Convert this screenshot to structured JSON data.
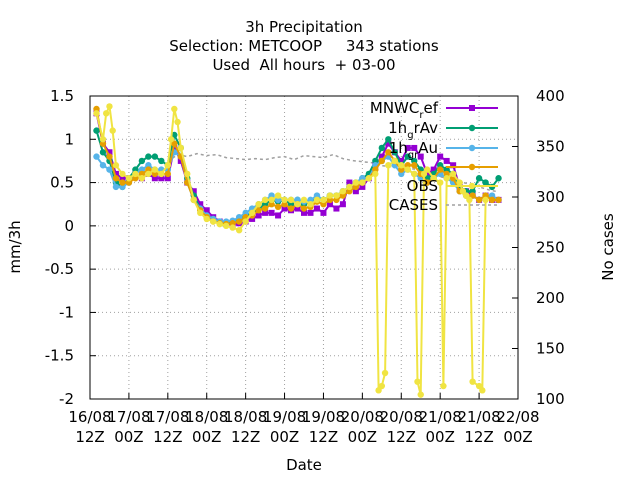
{
  "chart_data": {
    "type": "line",
    "title": [
      "3h Precipitation",
      "Selection: METCOOP     343 stations",
      "Used  All hours  + 03-00"
    ],
    "xlabel": "Date",
    "ylabel": "mm/3h",
    "y2label": "No cases",
    "ylim": [
      -2,
      1.5
    ],
    "y2lim": [
      100,
      400
    ],
    "yticks": [
      "1.5",
      "1",
      "0.5",
      "0",
      "-0.5",
      "-1",
      "-1.5",
      "-2"
    ],
    "y2ticks": [
      "400",
      "350",
      "300",
      "250",
      "200",
      "150",
      "100"
    ],
    "xrange_hours": [
      0,
      132
    ],
    "xticks": [
      {
        "h": 0,
        "line1": "16/08",
        "line2": "12Z"
      },
      {
        "h": 12,
        "line1": "17/08",
        "line2": "00Z"
      },
      {
        "h": 24,
        "line1": "17/08",
        "line2": "12Z"
      },
      {
        "h": 36,
        "line1": "18/08",
        "line2": "00Z"
      },
      {
        "h": 48,
        "line1": "18/08",
        "line2": "12Z"
      },
      {
        "h": 60,
        "line1": "19/08",
        "line2": "00Z"
      },
      {
        "h": 72,
        "line1": "19/08",
        "line2": "12Z"
      },
      {
        "h": 84,
        "line1": "20/08",
        "line2": "00Z"
      },
      {
        "h": 96,
        "line1": "20/08",
        "line2": "12Z"
      },
      {
        "h": 108,
        "line1": "21/08",
        "line2": "00Z"
      },
      {
        "h": 120,
        "line1": "21/08",
        "line2": "12Z"
      },
      {
        "h": 132,
        "line1": "22/08",
        "line2": "00Z"
      }
    ],
    "grid": true,
    "legend_position": "top-right",
    "series": [
      {
        "name": "MNWC_ref",
        "label_main": "MNWC",
        "label_sub": "r",
        "label_tail": "ef",
        "color": "#9400d3",
        "marker": "square",
        "axis": "y1",
        "x": [
          2,
          4,
          6,
          8,
          10,
          12,
          14,
          16,
          18,
          20,
          22,
          24,
          26,
          28,
          30,
          32,
          34,
          36,
          38,
          40,
          42,
          44,
          46,
          48,
          50,
          52,
          54,
          56,
          58,
          60,
          62,
          64,
          66,
          68,
          70,
          72,
          74,
          76,
          78,
          80,
          82,
          84,
          86,
          88,
          90,
          92,
          94,
          96,
          98,
          100,
          102,
          104,
          106,
          108,
          110,
          112,
          114,
          116,
          118,
          120,
          122,
          124,
          126
        ],
        "y": [
          1.3,
          0.95,
          0.85,
          0.6,
          0.55,
          0.55,
          0.6,
          0.55,
          0.6,
          0.55,
          0.55,
          0.55,
          0.9,
          0.75,
          0.5,
          0.4,
          0.25,
          0.18,
          0.1,
          0.05,
          0.02,
          0.02,
          0.03,
          0.05,
          0.08,
          0.12,
          0.15,
          0.15,
          0.12,
          0.2,
          0.18,
          0.2,
          0.15,
          0.15,
          0.2,
          0.15,
          0.25,
          0.2,
          0.25,
          0.5,
          0.4,
          0.45,
          0.55,
          0.7,
          0.8,
          0.95,
          0.85,
          0.75,
          0.9,
          0.9,
          0.8,
          0.6,
          0.65,
          0.8,
          0.75,
          0.7,
          0.45,
          0.4,
          0.35,
          0.3,
          0.35,
          0.3,
          0.3
        ]
      },
      {
        "name": "1h_grAv",
        "label_main": "1h",
        "label_sub": "g",
        "label_tail": "rAv",
        "color": "#009e73",
        "marker": "circle",
        "axis": "y1",
        "x": [
          2,
          4,
          6,
          8,
          10,
          12,
          14,
          16,
          18,
          20,
          22,
          24,
          26,
          28,
          30,
          32,
          34,
          36,
          38,
          40,
          42,
          44,
          46,
          48,
          50,
          52,
          54,
          56,
          58,
          60,
          62,
          64,
          66,
          68,
          70,
          72,
          74,
          76,
          78,
          80,
          82,
          84,
          86,
          88,
          90,
          92,
          94,
          96,
          98,
          100,
          102,
          104,
          106,
          108,
          110,
          112,
          114,
          116,
          118,
          120,
          122,
          124,
          126
        ],
        "y": [
          1.1,
          0.85,
          0.75,
          0.5,
          0.45,
          0.55,
          0.65,
          0.75,
          0.8,
          0.8,
          0.75,
          0.7,
          1.05,
          0.9,
          0.55,
          0.35,
          0.2,
          0.12,
          0.08,
          0.05,
          0.04,
          0.05,
          0.08,
          0.12,
          0.15,
          0.2,
          0.25,
          0.3,
          0.28,
          0.3,
          0.25,
          0.3,
          0.25,
          0.28,
          0.32,
          0.3,
          0.35,
          0.35,
          0.4,
          0.45,
          0.5,
          0.55,
          0.6,
          0.75,
          0.9,
          1.0,
          0.85,
          0.7,
          0.8,
          0.75,
          0.65,
          0.55,
          0.6,
          0.7,
          0.65,
          0.6,
          0.45,
          0.4,
          0.4,
          0.55,
          0.5,
          0.45,
          0.55
        ]
      },
      {
        "name": "1h_grAu",
        "label_main": "1h",
        "label_sub": "gr",
        "label_tail": "Au",
        "color": "#56b4e9",
        "marker": "circle",
        "axis": "y1",
        "x": [
          2,
          4,
          6,
          8,
          10,
          12,
          14,
          16,
          18,
          20,
          22,
          24,
          26,
          28,
          30,
          32,
          34,
          36,
          38,
          40,
          42,
          44,
          46,
          48,
          50,
          52,
          54,
          56,
          58,
          60,
          62,
          64,
          66,
          68,
          70,
          72,
          74,
          76,
          78,
          80,
          82,
          84,
          86,
          88,
          90,
          92,
          94,
          96,
          98,
          100,
          102,
          104,
          106,
          108,
          110,
          112,
          114,
          116,
          118,
          120,
          122,
          124,
          126
        ],
        "y": [
          0.8,
          0.7,
          0.65,
          0.45,
          0.45,
          0.5,
          0.6,
          0.65,
          0.7,
          0.65,
          0.65,
          0.65,
          0.85,
          0.8,
          0.5,
          0.3,
          0.2,
          0.12,
          0.08,
          0.05,
          0.05,
          0.06,
          0.1,
          0.15,
          0.2,
          0.25,
          0.3,
          0.35,
          0.3,
          0.3,
          0.3,
          0.3,
          0.28,
          0.3,
          0.35,
          0.3,
          0.35,
          0.35,
          0.4,
          0.45,
          0.5,
          0.55,
          0.55,
          0.7,
          0.75,
          0.8,
          0.7,
          0.6,
          0.65,
          0.6,
          0.55,
          0.5,
          0.55,
          0.6,
          0.55,
          0.5,
          0.4,
          0.35,
          0.35,
          0.3,
          0.35,
          0.35,
          0.3
        ]
      },
      {
        "name": "",
        "label_main": "",
        "label_sub": "",
        "label_tail": "",
        "color": "#e69f00",
        "marker": "circle",
        "axis": "y1",
        "x": [
          2,
          4,
          6,
          8,
          10,
          12,
          14,
          16,
          18,
          20,
          22,
          24,
          26,
          28,
          30,
          32,
          34,
          36,
          38,
          40,
          42,
          44,
          46,
          48,
          50,
          52,
          54,
          56,
          58,
          60,
          62,
          64,
          66,
          68,
          70,
          72,
          74,
          76,
          78,
          80,
          82,
          84,
          86,
          88,
          90,
          92,
          94,
          96,
          98,
          100,
          102,
          104,
          106,
          108,
          110,
          112,
          114,
          116,
          118,
          120,
          122,
          124,
          126
        ],
        "y": [
          1.35,
          0.95,
          0.8,
          0.55,
          0.5,
          0.5,
          0.55,
          0.6,
          0.65,
          0.6,
          0.6,
          0.6,
          0.95,
          0.8,
          0.5,
          0.3,
          0.18,
          0.1,
          0.05,
          0.03,
          0.02,
          0.03,
          0.05,
          0.1,
          0.12,
          0.18,
          0.2,
          0.25,
          0.22,
          0.25,
          0.2,
          0.25,
          0.2,
          0.22,
          0.28,
          0.25,
          0.3,
          0.3,
          0.35,
          0.4,
          0.45,
          0.5,
          0.55,
          0.65,
          0.75,
          0.85,
          0.75,
          0.65,
          0.7,
          0.7,
          0.6,
          0.5,
          0.55,
          0.65,
          0.6,
          0.55,
          0.4,
          0.35,
          0.35,
          0.3,
          0.35,
          0.3,
          0.3
        ]
      },
      {
        "name": "OBS",
        "label_main": "OBS",
        "label_sub": "",
        "label_tail": "",
        "color": "#f0e442",
        "marker": "circle",
        "axis": "y1",
        "x": [
          2,
          4,
          5,
          6,
          7,
          8,
          10,
          12,
          14,
          16,
          18,
          20,
          22,
          24,
          25,
          26,
          27,
          28,
          30,
          32,
          34,
          36,
          38,
          40,
          42,
          44,
          46,
          48,
          50,
          52,
          54,
          56,
          58,
          60,
          62,
          64,
          66,
          68,
          70,
          72,
          74,
          76,
          78,
          80,
          82,
          84,
          86,
          88,
          89,
          90,
          91,
          92,
          94,
          96,
          98,
          100,
          101,
          102,
          103,
          104,
          106,
          108,
          109,
          110,
          112,
          114,
          115,
          116,
          117,
          118,
          120,
          121,
          122
        ],
        "y": [
          1.3,
          1.0,
          1.3,
          1.38,
          1.1,
          0.7,
          0.6,
          0.55,
          0.6,
          0.55,
          0.6,
          0.65,
          0.6,
          0.7,
          1.0,
          1.35,
          1.2,
          0.9,
          0.6,
          0.3,
          0.15,
          0.08,
          0.05,
          0.02,
          0.0,
          -0.02,
          -0.05,
          0.05,
          0.15,
          0.25,
          0.3,
          0.3,
          0.35,
          0.3,
          0.3,
          0.25,
          0.3,
          0.25,
          0.3,
          0.3,
          0.35,
          0.35,
          0.4,
          0.45,
          0.5,
          0.5,
          0.55,
          0.6,
          -1.9,
          -1.85,
          -1.7,
          0.7,
          0.75,
          0.7,
          0.65,
          0.6,
          -1.8,
          -1.95,
          0.6,
          0.65,
          0.55,
          0.5,
          -1.85,
          0.55,
          0.6,
          0.5,
          0.4,
          0.35,
          0.3,
          -1.8,
          -1.85,
          -1.9,
          0.3
        ]
      },
      {
        "name": "CASES",
        "label_main": "CASES",
        "label_sub": "",
        "label_tail": "",
        "color": "#a0a0a0",
        "marker": "none",
        "dashed": true,
        "axis": "y2",
        "x": [
          24,
          27,
          30,
          33,
          36,
          39,
          42,
          45,
          48,
          51,
          54,
          57,
          60,
          63,
          66,
          69,
          72,
          75,
          78,
          81,
          84,
          87,
          90,
          93,
          96,
          99,
          102,
          105,
          108,
          111,
          114,
          117,
          120,
          123,
          126
        ],
        "y": [
          335,
          342,
          340,
          343,
          341,
          342,
          339,
          338,
          337,
          338,
          337,
          339,
          340,
          337,
          341,
          340,
          339,
          342,
          338,
          336,
          335,
          334,
          331,
          330,
          329,
          328,
          327,
          325,
          320,
          318,
          315,
          313,
          310,
          307,
          305
        ]
      }
    ]
  }
}
